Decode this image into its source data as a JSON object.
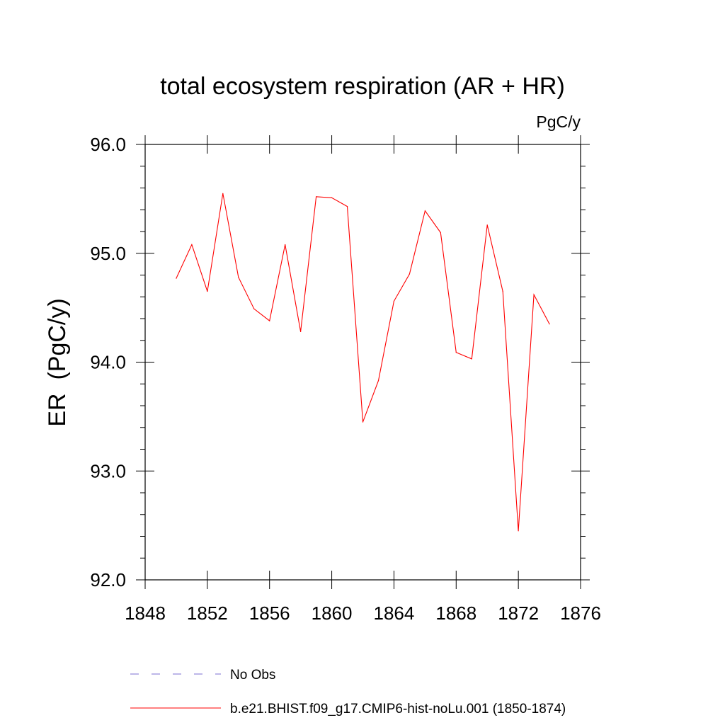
{
  "chart_data": {
    "type": "line",
    "title": "total ecosystem respiration (AR + HR)",
    "units": "PgC/y",
    "ylabel": "ER  (PgC/y)",
    "xlabel": "",
    "xlim": [
      1848,
      1876
    ],
    "ylim": [
      92.0,
      96.0
    ],
    "x_ticks": [
      1848,
      1852,
      1856,
      1860,
      1864,
      1868,
      1872,
      1876
    ],
    "x_tick_labels": [
      "1848",
      "1852",
      "1856",
      "1860",
      "1864",
      "1868",
      "1872",
      "1876"
    ],
    "y_ticks": [
      92.0,
      93.0,
      94.0,
      95.0,
      96.0
    ],
    "y_tick_labels": [
      "92.0",
      "93.0",
      "94.0",
      "95.0",
      "96.0"
    ],
    "grid": false,
    "legend_position": "bottom",
    "series": [
      {
        "name": "b.e21.BHIST.f09_g17.CMIP6-hist-noLu.001 (1850-1874)",
        "color": "#ff0000",
        "line_style": "solid",
        "x": [
          1850,
          1851,
          1852,
          1853,
          1854,
          1855,
          1856,
          1857,
          1858,
          1859,
          1860,
          1861,
          1862,
          1863,
          1864,
          1865,
          1866,
          1867,
          1868,
          1869,
          1870,
          1871,
          1872,
          1873,
          1874
        ],
        "y": [
          94.77,
          95.08,
          94.65,
          95.55,
          94.78,
          94.49,
          94.38,
          95.08,
          94.28,
          95.52,
          95.51,
          95.43,
          93.45,
          93.83,
          94.56,
          94.81,
          95.39,
          95.19,
          94.09,
          94.03,
          95.26,
          94.65,
          92.45,
          94.62,
          94.35
        ]
      }
    ],
    "legend": [
      {
        "label": "No Obs",
        "color": "#7b6fd0",
        "line_style": "dashed"
      },
      {
        "label": "b.e21.BHIST.f09_g17.CMIP6-hist-noLu.001 (1850-1874)",
        "color": "#ff0000",
        "line_style": "solid"
      }
    ]
  }
}
